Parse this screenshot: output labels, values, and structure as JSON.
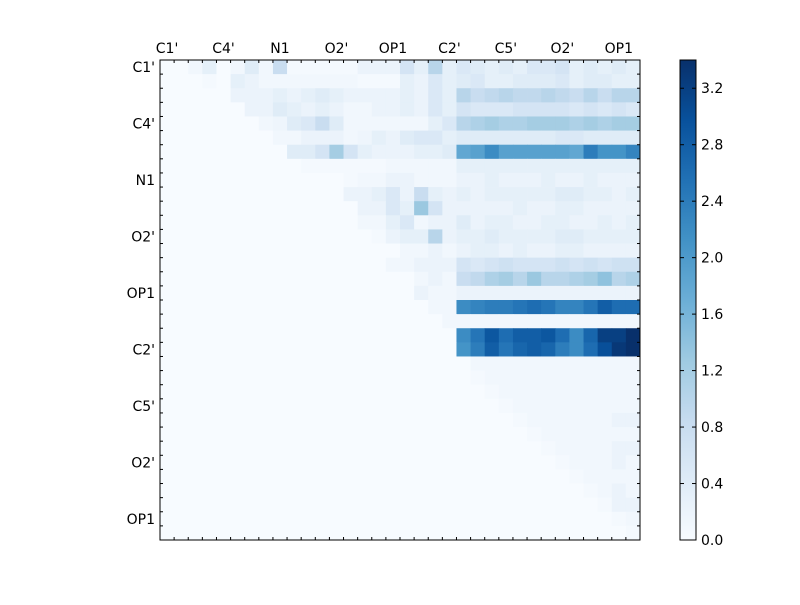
{
  "chart_data": {
    "type": "heatmap",
    "title": "",
    "xlabel": "",
    "ylabel": "",
    "rows": 34,
    "cols": 34,
    "x_tick_labels": [
      "C1'",
      "C4'",
      "N1",
      "O2'",
      "OP1",
      "C2'",
      "C5'",
      "O2'",
      "OP1"
    ],
    "x_tick_positions": [
      0,
      4,
      8,
      12,
      16,
      20,
      24,
      28,
      32
    ],
    "y_tick_labels": [
      "C1'",
      "C4'",
      "N1",
      "O2'",
      "OP1",
      "C2'",
      "C5'",
      "O2'",
      "OP1"
    ],
    "y_tick_positions": [
      0,
      4,
      8,
      12,
      16,
      20,
      24,
      28,
      32
    ],
    "x_axis_position": "top",
    "triangle": "upper",
    "colormap": "Blues",
    "colormap_stops": [
      "#f7fbff",
      "#deebf7",
      "#c6dbef",
      "#9ecae1",
      "#6baed6",
      "#4292c6",
      "#2171b5",
      "#08519c",
      "#08306b"
    ],
    "vmin": 0.0,
    "vmax": 3.4,
    "colorbar": {
      "position": "right",
      "ticks": [
        0.0,
        0.4,
        0.8,
        1.2,
        1.6,
        2.0,
        2.4,
        2.8,
        3.2
      ],
      "tick_labels": [
        "0.0",
        "0.4",
        "0.8",
        "1.2",
        "1.6",
        "2.0",
        "2.4",
        "2.8",
        "3.2"
      ]
    },
    "values": [
      [
        0,
        0,
        0.1,
        0.3,
        0,
        0.1,
        0.4,
        0.1,
        0.8,
        0.05,
        0.05,
        0.05,
        0.05,
        0.05,
        0.2,
        0.2,
        0.2,
        0.6,
        0.3,
        1.0,
        0.3,
        0.5,
        0.4,
        0.3,
        0.4,
        0.3,
        0.5,
        0.5,
        0.6,
        0.3,
        0.4,
        0.3,
        0.4,
        0.3
      ],
      [
        0,
        0,
        0,
        0.05,
        0,
        0.3,
        0.2,
        0.1,
        0.1,
        0.1,
        0.1,
        0.1,
        0.1,
        0.1,
        0.05,
        0.05,
        0.05,
        0.3,
        0.2,
        0.5,
        0.3,
        0.4,
        0.5,
        0.3,
        0.3,
        0.4,
        0.4,
        0.4,
        0.5,
        0.3,
        0.4,
        0.4,
        0.3,
        0.3
      ],
      [
        0,
        0,
        0,
        0,
        0,
        0.2,
        0.2,
        0.2,
        0.3,
        0.2,
        0.3,
        0.4,
        0.3,
        0.2,
        0.2,
        0.2,
        0.2,
        0.3,
        0.2,
        0.5,
        0.3,
        1.0,
        0.8,
        0.9,
        1.0,
        0.9,
        0.9,
        1.0,
        0.9,
        0.8,
        1.0,
        0.8,
        1.0,
        1.0
      ],
      [
        0,
        0,
        0,
        0,
        0,
        0,
        0.2,
        0.2,
        0.4,
        0.3,
        0.2,
        0.3,
        0.2,
        0.1,
        0.1,
        0.2,
        0.2,
        0.3,
        0.2,
        0.5,
        0.3,
        0.6,
        0.5,
        0.5,
        0.5,
        0.6,
        0.6,
        0.6,
        0.6,
        0.5,
        0.6,
        0.5,
        0.6,
        0.5
      ],
      [
        0,
        0,
        0,
        0,
        0,
        0,
        0,
        0.1,
        0.15,
        0.4,
        0.5,
        0.8,
        0.4,
        0.1,
        0.1,
        0.1,
        0.1,
        0.1,
        0.1,
        0.3,
        0.5,
        1.0,
        1.1,
        1.2,
        1.1,
        1.1,
        1.2,
        1.2,
        1.2,
        1.1,
        1.2,
        1.1,
        1.2,
        1.2
      ],
      [
        0,
        0,
        0,
        0,
        0,
        0,
        0,
        0,
        0.1,
        0.1,
        0.2,
        0.2,
        0.2,
        0.1,
        0.15,
        0.3,
        0.2,
        0.4,
        0.5,
        0.5,
        0.3,
        0.4,
        0.4,
        0.4,
        0.4,
        0.4,
        0.4,
        0.4,
        0.5,
        0.5,
        0.4,
        0.4,
        0.4,
        0.4
      ],
      [
        0,
        0,
        0,
        0,
        0,
        0,
        0,
        0,
        0,
        0.4,
        0.4,
        0.6,
        1.2,
        0.6,
        0.3,
        0.2,
        0.2,
        0.2,
        0.3,
        0.3,
        0.4,
        1.8,
        1.9,
        2.2,
        1.9,
        1.9,
        1.9,
        1.9,
        1.9,
        1.8,
        2.4,
        2.1,
        2.1,
        2.3
      ],
      [
        0,
        0,
        0,
        0,
        0,
        0,
        0,
        0,
        0,
        0,
        0.05,
        0.05,
        0.05,
        0.05,
        0.05,
        0.05,
        0.1,
        0.1,
        0.1,
        0.1,
        0.1,
        0.3,
        0.3,
        0.3,
        0.3,
        0.3,
        0.3,
        0.3,
        0.3,
        0.3,
        0.3,
        0.3,
        0.3,
        0.3
      ],
      [
        0,
        0,
        0,
        0,
        0,
        0,
        0,
        0,
        0,
        0,
        0,
        0,
        0,
        0.05,
        0.1,
        0.1,
        0.2,
        0.2,
        0.1,
        0.1,
        0.1,
        0.2,
        0.2,
        0.3,
        0.2,
        0.2,
        0.2,
        0.3,
        0.2,
        0.2,
        0.3,
        0.2,
        0.2,
        0.2
      ],
      [
        0,
        0,
        0,
        0,
        0,
        0,
        0,
        0,
        0,
        0,
        0,
        0,
        0,
        0.2,
        0.2,
        0.3,
        0.5,
        0.2,
        0.8,
        0.3,
        0.2,
        0.3,
        0.2,
        0.3,
        0.3,
        0.3,
        0.3,
        0.3,
        0.4,
        0.4,
        0.3,
        0.3,
        0.2,
        0.3
      ],
      [
        0,
        0,
        0,
        0,
        0,
        0,
        0,
        0,
        0,
        0,
        0,
        0,
        0,
        0,
        0.2,
        0.2,
        0.5,
        0.3,
        1.3,
        0.6,
        0.2,
        0.2,
        0.2,
        0.2,
        0.2,
        0.3,
        0.2,
        0.2,
        0.3,
        0.3,
        0.2,
        0.2,
        0.2,
        0.2
      ],
      [
        0,
        0,
        0,
        0,
        0,
        0,
        0,
        0,
        0,
        0,
        0,
        0,
        0,
        0,
        0.1,
        0.1,
        0.3,
        0.5,
        0.1,
        0.2,
        0.2,
        0.4,
        0.2,
        0.3,
        0.3,
        0.2,
        0.2,
        0.3,
        0.3,
        0.2,
        0.2,
        0.3,
        0.2,
        0.3
      ],
      [
        0,
        0,
        0,
        0,
        0,
        0,
        0,
        0,
        0,
        0,
        0,
        0,
        0,
        0,
        0,
        0.05,
        0.2,
        0.3,
        0.3,
        1.0,
        0.2,
        0.3,
        0.3,
        0.4,
        0.3,
        0.3,
        0.3,
        0.3,
        0.4,
        0.4,
        0.3,
        0.3,
        0.3,
        0.3
      ],
      [
        0,
        0,
        0,
        0,
        0,
        0,
        0,
        0,
        0,
        0,
        0,
        0,
        0,
        0,
        0,
        0,
        0,
        0.1,
        0.1,
        0.2,
        0.1,
        0.2,
        0.3,
        0.3,
        0.2,
        0.3,
        0.2,
        0.2,
        0.3,
        0.3,
        0.2,
        0.2,
        0.2,
        0.2
      ],
      [
        0,
        0,
        0,
        0,
        0,
        0,
        0,
        0,
        0,
        0,
        0,
        0,
        0,
        0,
        0,
        0,
        0.1,
        0.1,
        0.2,
        0.2,
        0.2,
        0.6,
        0.5,
        0.6,
        0.7,
        0.6,
        0.6,
        0.6,
        0.7,
        0.6,
        0.7,
        0.6,
        0.7,
        0.7
      ],
      [
        0,
        0,
        0,
        0,
        0,
        0,
        0,
        0,
        0,
        0,
        0,
        0,
        0,
        0,
        0,
        0,
        0,
        0,
        0.1,
        0.2,
        0.1,
        0.8,
        0.9,
        1.1,
        1.2,
        1.0,
        1.3,
        1.0,
        1.0,
        1.1,
        1.2,
        1.4,
        1.0,
        1.1
      ],
      [
        0,
        0,
        0,
        0,
        0,
        0,
        0,
        0,
        0,
        0,
        0,
        0,
        0,
        0,
        0,
        0,
        0,
        0,
        0.2,
        0.1,
        0.1,
        0.2,
        0.2,
        0.2,
        0.2,
        0.2,
        0.2,
        0.2,
        0.2,
        0.2,
        0.2,
        0.2,
        0.2,
        0.2
      ],
      [
        0,
        0,
        0,
        0,
        0,
        0,
        0,
        0,
        0,
        0,
        0,
        0,
        0,
        0,
        0,
        0,
        0,
        0,
        0,
        0.1,
        0.1,
        2.2,
        2.3,
        2.4,
        2.4,
        2.5,
        2.6,
        2.5,
        2.3,
        2.3,
        2.5,
        2.8,
        2.6,
        2.6
      ],
      [
        0,
        0,
        0,
        0,
        0,
        0,
        0,
        0,
        0,
        0,
        0,
        0,
        0,
        0,
        0,
        0,
        0,
        0,
        0,
        0,
        0.1,
        0.1,
        0.1,
        0.1,
        0.1,
        0.1,
        0.1,
        0.1,
        0.1,
        0.1,
        0.1,
        0.1,
        0.1,
        0.1
      ],
      [
        0,
        0,
        0,
        0,
        0,
        0,
        0,
        0,
        0,
        0,
        0,
        0,
        0,
        0,
        0,
        0,
        0,
        0,
        0,
        0,
        0,
        2.2,
        2.5,
        2.9,
        2.6,
        2.8,
        2.8,
        2.9,
        2.6,
        2.2,
        2.7,
        3.2,
        3.2,
        3.4
      ],
      [
        0,
        0,
        0,
        0,
        0,
        0,
        0,
        0,
        0,
        0,
        0,
        0,
        0,
        0,
        0,
        0,
        0,
        0,
        0,
        0,
        0,
        2.1,
        2.4,
        2.8,
        2.5,
        2.7,
        2.8,
        2.7,
        2.4,
        2.2,
        2.6,
        3.0,
        3.3,
        3.4
      ],
      [
        0,
        0,
        0,
        0,
        0,
        0,
        0,
        0,
        0,
        0,
        0,
        0,
        0,
        0,
        0,
        0,
        0,
        0,
        0,
        0,
        0,
        0,
        0.1,
        0.1,
        0.1,
        0.1,
        0.1,
        0.1,
        0.1,
        0.1,
        0.1,
        0.1,
        0.1,
        0.1
      ],
      [
        0,
        0,
        0,
        0,
        0,
        0,
        0,
        0,
        0,
        0,
        0,
        0,
        0,
        0,
        0,
        0,
        0,
        0,
        0,
        0,
        0,
        0,
        0.05,
        0.1,
        0.1,
        0.1,
        0.1,
        0.1,
        0.1,
        0.1,
        0.1,
        0.1,
        0.1,
        0.1
      ],
      [
        0,
        0,
        0,
        0,
        0,
        0,
        0,
        0,
        0,
        0,
        0,
        0,
        0,
        0,
        0,
        0,
        0,
        0,
        0,
        0,
        0,
        0,
        0,
        0.05,
        0.1,
        0.1,
        0.1,
        0.1,
        0.1,
        0.1,
        0.1,
        0.1,
        0.1,
        0.1
      ],
      [
        0,
        0,
        0,
        0,
        0,
        0,
        0,
        0,
        0,
        0,
        0,
        0,
        0,
        0,
        0,
        0,
        0,
        0,
        0,
        0,
        0,
        0,
        0,
        0,
        0.05,
        0.1,
        0.1,
        0.1,
        0.1,
        0.1,
        0.1,
        0.1,
        0.1,
        0.1
      ],
      [
        0,
        0,
        0,
        0,
        0,
        0,
        0,
        0,
        0,
        0,
        0,
        0,
        0,
        0,
        0,
        0,
        0,
        0,
        0,
        0,
        0,
        0,
        0,
        0,
        0,
        0.05,
        0.1,
        0.1,
        0.1,
        0.1,
        0.1,
        0.1,
        0.2,
        0.2
      ],
      [
        0,
        0,
        0,
        0,
        0,
        0,
        0,
        0,
        0,
        0,
        0,
        0,
        0,
        0,
        0,
        0,
        0,
        0,
        0,
        0,
        0,
        0,
        0,
        0,
        0,
        0,
        0.05,
        0.1,
        0.1,
        0.1,
        0.1,
        0.1,
        0.1,
        0.1
      ],
      [
        0,
        0,
        0,
        0,
        0,
        0,
        0,
        0,
        0,
        0,
        0,
        0,
        0,
        0,
        0,
        0,
        0,
        0,
        0,
        0,
        0,
        0,
        0,
        0,
        0,
        0,
        0,
        0.05,
        0.1,
        0.1,
        0.1,
        0.1,
        0.2,
        0.2
      ],
      [
        0,
        0,
        0,
        0,
        0,
        0,
        0,
        0,
        0,
        0,
        0,
        0,
        0,
        0,
        0,
        0,
        0,
        0,
        0,
        0,
        0,
        0,
        0,
        0,
        0,
        0,
        0,
        0,
        0.05,
        0.1,
        0.1,
        0.1,
        0.2,
        0.1
      ],
      [
        0,
        0,
        0,
        0,
        0,
        0,
        0,
        0,
        0,
        0,
        0,
        0,
        0,
        0,
        0,
        0,
        0,
        0,
        0,
        0,
        0,
        0,
        0,
        0,
        0,
        0,
        0,
        0,
        0,
        0.05,
        0.1,
        0.1,
        0.1,
        0.1
      ],
      [
        0,
        0,
        0,
        0,
        0,
        0,
        0,
        0,
        0,
        0,
        0,
        0,
        0,
        0,
        0,
        0,
        0,
        0,
        0,
        0,
        0,
        0,
        0,
        0,
        0,
        0,
        0,
        0,
        0,
        0,
        0.05,
        0.1,
        0.2,
        0.1
      ],
      [
        0,
        0,
        0,
        0,
        0,
        0,
        0,
        0,
        0,
        0,
        0,
        0,
        0,
        0,
        0,
        0,
        0,
        0,
        0,
        0,
        0,
        0,
        0,
        0,
        0,
        0,
        0,
        0,
        0,
        0,
        0,
        0.05,
        0.2,
        0.2
      ],
      [
        0,
        0,
        0,
        0,
        0,
        0,
        0,
        0,
        0,
        0,
        0,
        0,
        0,
        0,
        0,
        0,
        0,
        0,
        0,
        0,
        0,
        0,
        0,
        0,
        0,
        0,
        0,
        0,
        0,
        0,
        0,
        0,
        0.05,
        0.1
      ],
      [
        0,
        0,
        0,
        0,
        0,
        0,
        0,
        0,
        0,
        0,
        0,
        0,
        0,
        0,
        0,
        0,
        0,
        0,
        0,
        0,
        0,
        0,
        0,
        0,
        0,
        0,
        0,
        0,
        0,
        0,
        0,
        0,
        0,
        0.05
      ]
    ]
  }
}
